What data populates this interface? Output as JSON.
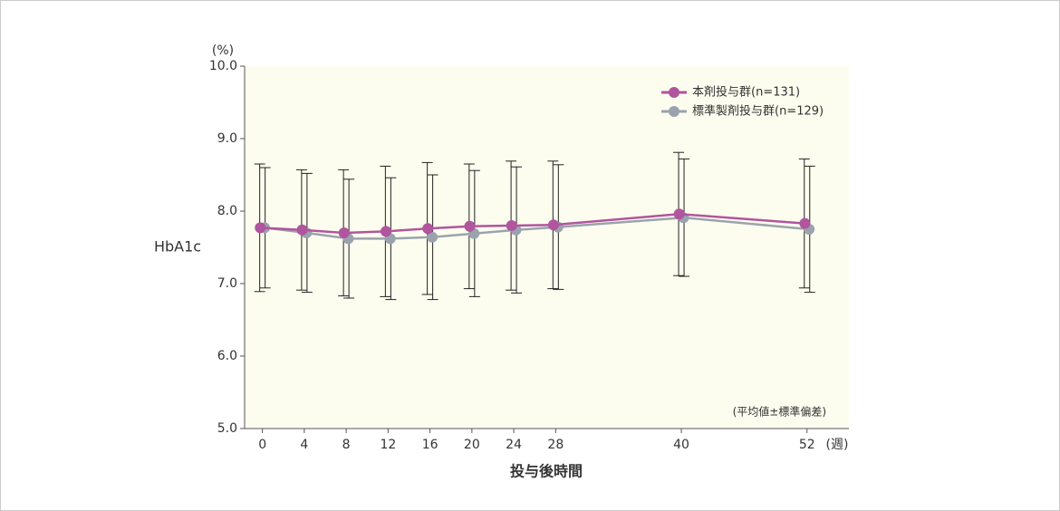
{
  "chart_data": {
    "type": "line",
    "y_unit": "(%)",
    "y_label": "HbA1c",
    "x_label": "投与後時間",
    "x_unit": "(週)",
    "note": "(平均値±標準偏差)",
    "x": [
      0,
      4,
      8,
      12,
      16,
      20,
      24,
      28,
      40,
      52
    ],
    "series": [
      {
        "name": "本剤投与群(n=131)",
        "color": "#b0559e",
        "values": [
          7.77,
          7.74,
          7.7,
          7.72,
          7.76,
          7.79,
          7.8,
          7.81,
          7.96,
          7.83
        ],
        "errors": [
          0.88,
          0.83,
          0.87,
          0.9,
          0.91,
          0.86,
          0.89,
          0.88,
          0.85,
          0.89
        ]
      },
      {
        "name": "標準製剤投与群(n=129)",
        "color": "#9aa3ad",
        "values": [
          7.77,
          7.7,
          7.62,
          7.62,
          7.64,
          7.69,
          7.74,
          7.78,
          7.91,
          7.75
        ],
        "errors": [
          0.83,
          0.82,
          0.82,
          0.84,
          0.86,
          0.87,
          0.87,
          0.86,
          0.81,
          0.87
        ]
      }
    ],
    "xlim": [
      -1.7,
      56
    ],
    "ylim": [
      5,
      10
    ],
    "xticks": [
      0,
      4,
      8,
      12,
      16,
      20,
      24,
      28,
      40,
      52
    ],
    "yticks": [
      {
        "value": 5,
        "label": "5.0"
      },
      {
        "value": 6,
        "label": "6.0"
      },
      {
        "value": 7,
        "label": "7.0"
      },
      {
        "value": 8,
        "label": "8.0"
      },
      {
        "value": 9,
        "label": "9.0"
      },
      {
        "value": 10,
        "label": "10.0"
      }
    ],
    "legend": "upper right",
    "plot_background": "#fdfdef"
  }
}
